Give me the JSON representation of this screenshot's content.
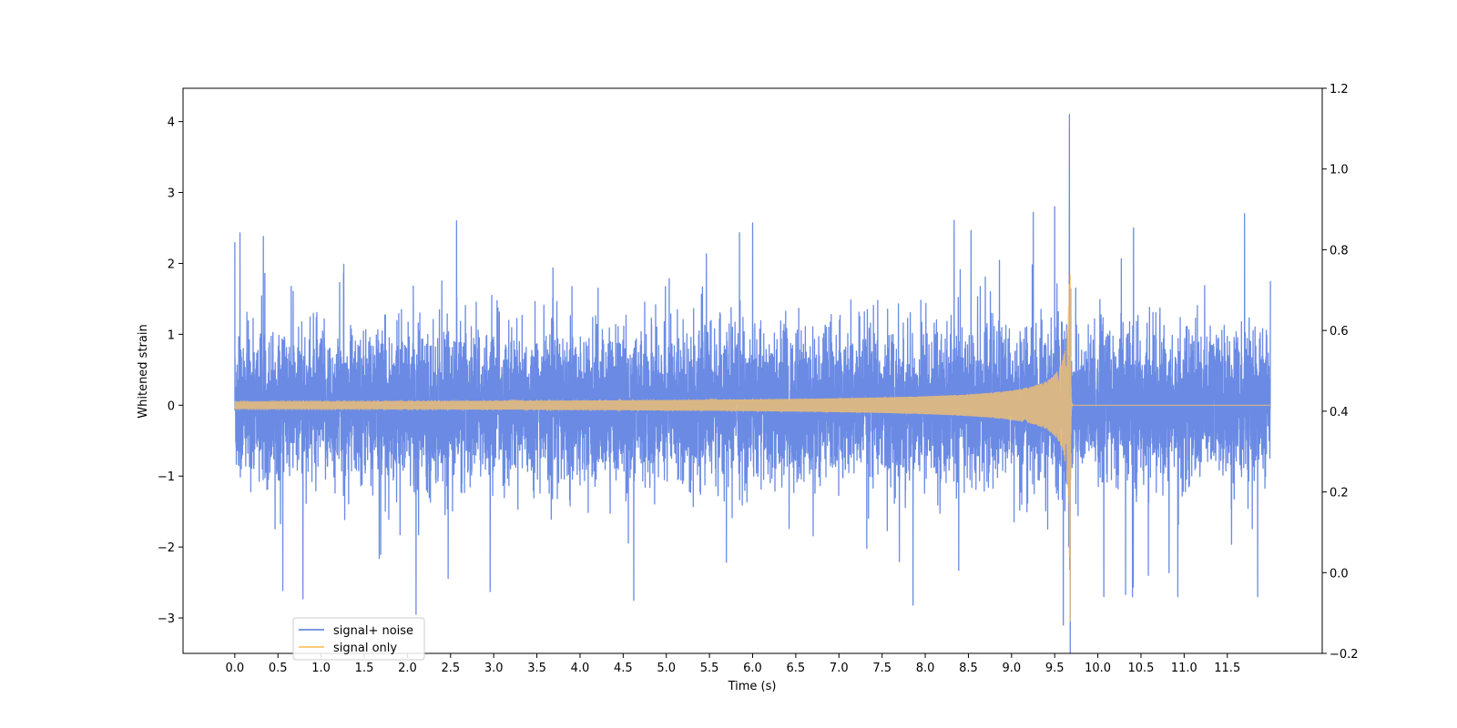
{
  "chart_data": {
    "type": "line",
    "title": "",
    "xlabel": "Time (s)",
    "ylabel": "Whitened strain",
    "y2label": "",
    "xlim": [
      -0.6,
      12.6
    ],
    "ylim": [
      -3.5,
      4.47
    ],
    "y2lim": [
      -0.2,
      1.2
    ],
    "x_ticks": [
      0.0,
      0.5,
      1.0,
      1.5,
      2.0,
      2.5,
      3.0,
      3.5,
      4.0,
      4.5,
      5.0,
      5.5,
      6.0,
      6.5,
      7.0,
      7.5,
      8.0,
      8.5,
      9.0,
      9.5,
      10.0,
      10.5,
      11.0,
      11.5
    ],
    "x_tick_labels": [
      "0.0",
      "0.5",
      "1.0",
      "1.5",
      "2.0",
      "2.5",
      "3.0",
      "3.5",
      "4.0",
      "4.5",
      "5.0",
      "5.5",
      "6.0",
      "6.5",
      "7.0",
      "7.5",
      "8.0",
      "8.5",
      "9.0",
      "9.5",
      "10.0",
      "10.5",
      "11.0",
      "11.5"
    ],
    "y_ticks": [
      -3,
      -2,
      -1,
      0,
      1,
      2,
      3,
      4
    ],
    "y_tick_labels": [
      "−3",
      "−2",
      "−1",
      "0",
      "1",
      "2",
      "3",
      "4"
    ],
    "y2_ticks": [
      -0.2,
      0.0,
      0.2,
      0.4,
      0.6,
      0.8,
      1.0,
      1.2
    ],
    "y2_tick_labels": [
      "−0.2",
      "0.0",
      "0.2",
      "0.4",
      "0.6",
      "0.8",
      "1.0",
      "1.2"
    ],
    "grid": false,
    "legend_position": "lower-left",
    "series": [
      {
        "name": "signal+ noise",
        "color": "#6a8ae4",
        "kind": "noisy-strain",
        "x_range": [
          0.0,
          12.0
        ],
        "envelope_peaks": [
          {
            "x": 0.0,
            "y": 2.3
          },
          {
            "x": 0.06,
            "y": 2.43
          },
          {
            "x": 2.1,
            "y": -2.95
          },
          {
            "x": 2.57,
            "y": 2.6
          },
          {
            "x": 6.0,
            "y": 2.57
          },
          {
            "x": 9.5,
            "y": 2.8
          },
          {
            "x": 9.6,
            "y": -3.1
          },
          {
            "x": 9.67,
            "y": 4.1
          },
          {
            "x": 11.7,
            "y": 2.7
          },
          {
            "x": 12.0,
            "y": 1.75
          }
        ]
      },
      {
        "name": "signal only",
        "color": "#ffc466",
        "kind": "chirp",
        "x_range": [
          0.0,
          12.0
        ],
        "merger_time": 9.68,
        "peak_positive": 2.75,
        "peak_negative": -3.05
      }
    ]
  }
}
